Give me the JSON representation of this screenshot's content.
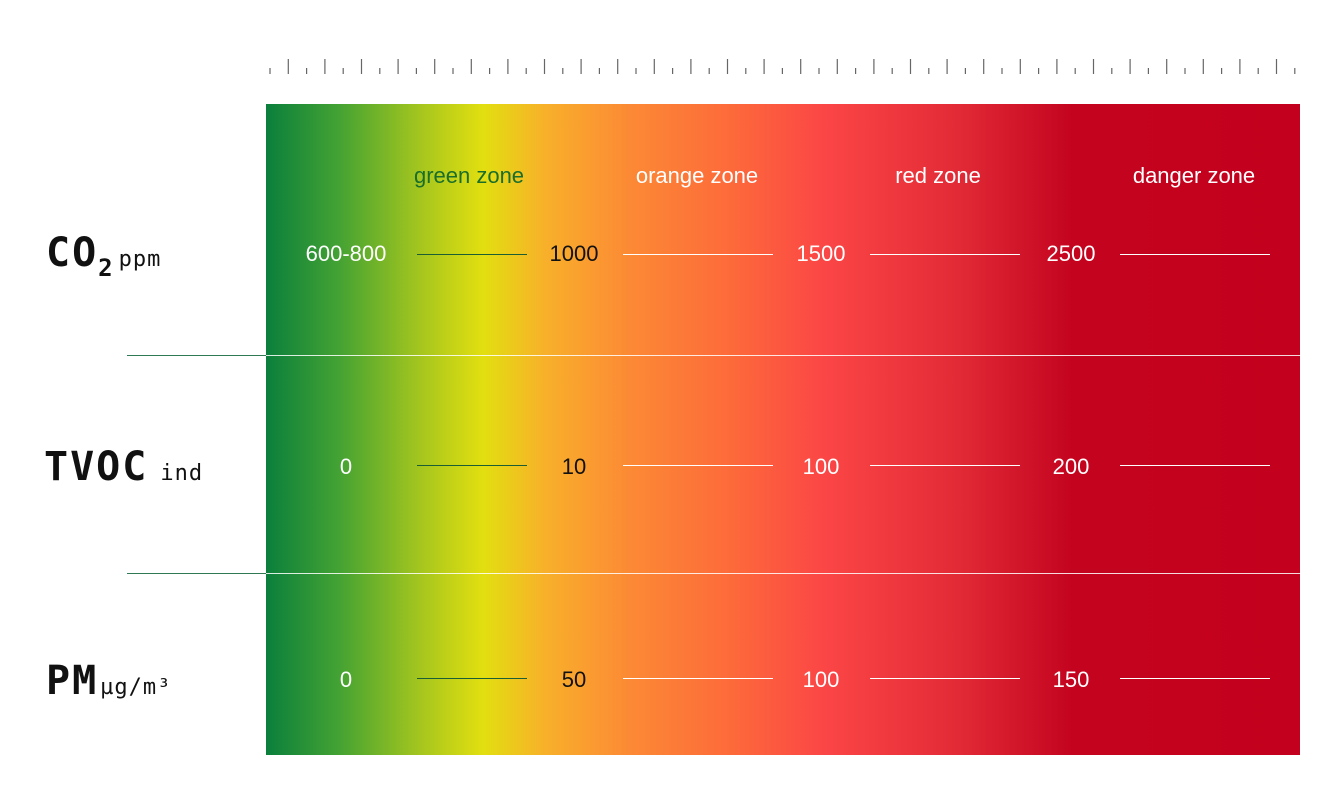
{
  "colors": {
    "green_text": "#1a6e2a",
    "dark_text": "#111111",
    "light_text": "#ffffff",
    "dark_line": "#1b5e34",
    "light_line": "#ffffff"
  },
  "zones": [
    {
      "label": "green zone",
      "color": "#1a6e2a"
    },
    {
      "label": "orange zone",
      "color": "#ffffff"
    },
    {
      "label": "red zone",
      "color": "#ffffff"
    },
    {
      "label": "danger zone",
      "color": "#ffffff"
    }
  ],
  "metrics": [
    {
      "id": "co2",
      "name": "CO",
      "subscript": "2",
      "unit": "ppm",
      "thresholds": [
        "600-800",
        "1000",
        "1500",
        "2500"
      ]
    },
    {
      "id": "tvoc",
      "name": "TVOC",
      "subscript": "",
      "unit": "ind",
      "thresholds": [
        "0",
        "10",
        "100",
        "200"
      ]
    },
    {
      "id": "pm",
      "name": "PM",
      "subscript": "",
      "unit": "µg/m³",
      "thresholds": [
        "0",
        "50",
        "100",
        "150"
      ]
    }
  ]
}
